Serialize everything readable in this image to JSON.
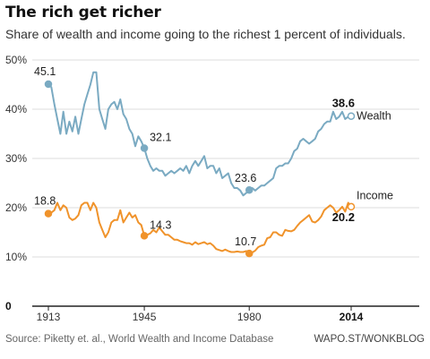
{
  "title": "The rich get richer",
  "subtitle": "Share of wealth and income going to the richest 1 percent of individuals.",
  "footer": {
    "source": "Source: Piketty et. al., World Wealth and Income Database",
    "credit": "WAPO.ST/WONKBLOG"
  },
  "colors": {
    "wealth": "#7aaac2",
    "income": "#f0932b",
    "grid": "#dddddd",
    "axis": "#222222"
  },
  "chart_data": {
    "type": "line",
    "xlim": [
      1913,
      2014
    ],
    "ylim": [
      0,
      50
    ],
    "y_ticks": [
      {
        "value": 50,
        "label": "50%"
      },
      {
        "value": 40,
        "label": "40%"
      },
      {
        "value": 30,
        "label": "30%"
      },
      {
        "value": 20,
        "label": "20%"
      },
      {
        "value": 10,
        "label": "10%"
      },
      {
        "value": 0,
        "label": "0"
      }
    ],
    "x_ticks": [
      {
        "value": 1913,
        "label": "1913",
        "bold": false
      },
      {
        "value": 1945,
        "label": "1945",
        "bold": false
      },
      {
        "value": 1980,
        "label": "1980",
        "bold": false
      },
      {
        "value": 2014,
        "label": "2014",
        "bold": true
      }
    ],
    "grid": true,
    "series": [
      {
        "name": "Wealth",
        "color": "#7aaac2",
        "x": [
          1913,
          1914,
          1915,
          1916,
          1917,
          1918,
          1919,
          1920,
          1921,
          1922,
          1923,
          1924,
          1925,
          1926,
          1927,
          1928,
          1929,
          1930,
          1931,
          1932,
          1933,
          1934,
          1935,
          1936,
          1937,
          1938,
          1939,
          1940,
          1941,
          1942,
          1943,
          1944,
          1945,
          1946,
          1947,
          1948,
          1949,
          1950,
          1951,
          1952,
          1953,
          1954,
          1955,
          1956,
          1957,
          1958,
          1959,
          1960,
          1961,
          1962,
          1963,
          1964,
          1965,
          1966,
          1967,
          1968,
          1969,
          1970,
          1971,
          1972,
          1973,
          1974,
          1975,
          1976,
          1977,
          1978,
          1979,
          1980,
          1981,
          1982,
          1983,
          1984,
          1985,
          1986,
          1987,
          1988,
          1989,
          1990,
          1991,
          1992,
          1993,
          1994,
          1995,
          1996,
          1997,
          1998,
          1999,
          2000,
          2001,
          2002,
          2003,
          2004,
          2005,
          2006,
          2007,
          2008,
          2009,
          2010,
          2011,
          2012,
          2013,
          2014
        ],
        "values": [
          45.1,
          44.5,
          41,
          38,
          35,
          39.5,
          35,
          37.5,
          35.5,
          38.5,
          35,
          38,
          41,
          43,
          45,
          47.5,
          47.5,
          40,
          38,
          36,
          40,
          41,
          41.5,
          40,
          42,
          39,
          38,
          36,
          35,
          32.5,
          34.5,
          33.5,
          32.1,
          30,
          28.5,
          27.5,
          28,
          27.5,
          27.5,
          26.5,
          27,
          27.5,
          27,
          27.5,
          28,
          27.5,
          28.5,
          27,
          28.5,
          29.5,
          28.5,
          29.5,
          30.5,
          28,
          28.5,
          28.5,
          27,
          28,
          26,
          26.5,
          27,
          25,
          24,
          24,
          23.5,
          22.5,
          23,
          23.6,
          24,
          23.5,
          24,
          24.5,
          24.5,
          25,
          25.5,
          26,
          28,
          28.5,
          28.5,
          29,
          29,
          30,
          31.5,
          32,
          33.5,
          34,
          33.5,
          33,
          33.5,
          34,
          35.5,
          36,
          37,
          37.5,
          37.5,
          39.5,
          38,
          38.5,
          39.5,
          38,
          38.5,
          38.6
        ],
        "end_label": "38.6"
      },
      {
        "name": "Income",
        "color": "#f0932b",
        "x": [
          1913,
          1914,
          1915,
          1916,
          1917,
          1918,
          1919,
          1920,
          1921,
          1922,
          1923,
          1924,
          1925,
          1926,
          1927,
          1928,
          1929,
          1930,
          1931,
          1932,
          1933,
          1934,
          1935,
          1936,
          1937,
          1938,
          1939,
          1940,
          1941,
          1942,
          1943,
          1944,
          1945,
          1946,
          1947,
          1948,
          1949,
          1950,
          1951,
          1952,
          1953,
          1954,
          1955,
          1956,
          1957,
          1958,
          1959,
          1960,
          1961,
          1962,
          1963,
          1964,
          1965,
          1966,
          1967,
          1968,
          1969,
          1970,
          1971,
          1972,
          1973,
          1974,
          1975,
          1976,
          1977,
          1978,
          1979,
          1980,
          1981,
          1982,
          1983,
          1984,
          1985,
          1986,
          1987,
          1988,
          1989,
          1990,
          1991,
          1992,
          1993,
          1994,
          1995,
          1996,
          1997,
          1998,
          1999,
          2000,
          2001,
          2002,
          2003,
          2004,
          2005,
          2006,
          2007,
          2008,
          2009,
          2010,
          2011,
          2012,
          2013,
          2014
        ],
        "values": [
          18.8,
          19,
          19.5,
          21,
          19.5,
          20.5,
          20,
          18,
          17.5,
          17.8,
          18.5,
          20.5,
          21,
          21,
          19.5,
          21,
          20,
          17,
          15.5,
          14,
          15,
          17,
          17.5,
          17.5,
          19.5,
          17,
          18,
          19,
          18,
          18.5,
          17,
          16.5,
          14.3,
          14.5,
          14.8,
          15.5,
          15,
          16,
          15.2,
          14.5,
          14.5,
          14,
          13.5,
          13.5,
          13.2,
          13,
          12.8,
          12.8,
          12.5,
          13,
          12.6,
          12.8,
          13,
          12.6,
          12.8,
          12.3,
          11.6,
          11.4,
          11.2,
          11.5,
          11.2,
          11,
          11,
          11.1,
          11,
          11,
          11.2,
          10.7,
          10.9,
          11.3,
          12,
          12.3,
          12.5,
          13.8,
          14,
          15,
          15,
          14.5,
          14.3,
          15.5,
          15.3,
          15.2,
          15.5,
          16.3,
          17,
          17.5,
          18,
          18.5,
          17.2,
          17,
          17.5,
          18.2,
          19.5,
          20,
          20.5,
          20,
          19,
          19.5,
          20.2,
          19.2,
          21,
          20.2
        ],
        "end_label": "20.2"
      }
    ],
    "annotations": [
      {
        "series": "Wealth",
        "x": 1913,
        "y": 45.1,
        "text": "45.1"
      },
      {
        "series": "Wealth",
        "x": 1945,
        "y": 32.1,
        "text": "32.1"
      },
      {
        "series": "Wealth",
        "x": 1980,
        "y": 23.6,
        "text": "23.6"
      },
      {
        "series": "Wealth",
        "x": 2014,
        "y": 38.6,
        "text": "38.6"
      },
      {
        "series": "Income",
        "x": 1913,
        "y": 18.8,
        "text": "18.8"
      },
      {
        "series": "Income",
        "x": 1945,
        "y": 14.3,
        "text": "14.3"
      },
      {
        "series": "Income",
        "x": 1980,
        "y": 10.7,
        "text": "10.7"
      },
      {
        "series": "Income",
        "x": 2014,
        "y": 20.2,
        "text": "20.2"
      }
    ]
  }
}
